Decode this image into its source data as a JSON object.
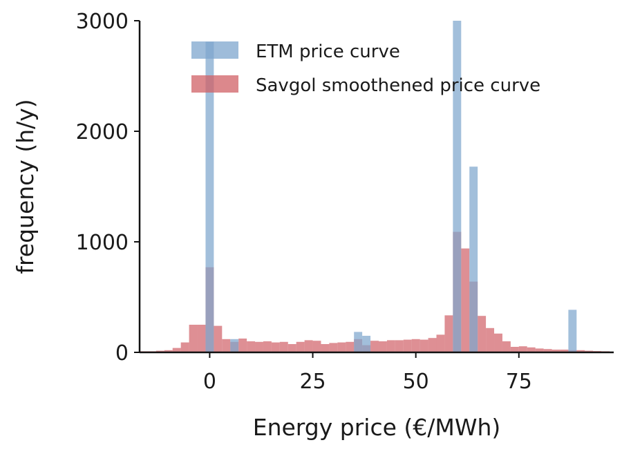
{
  "chart_data": {
    "type": "bar",
    "xlabel": "Energy price (€/MWh)",
    "ylabel": "frequency (h/y)",
    "xlim": [
      -17,
      98
    ],
    "ylim": [
      0,
      3000
    ],
    "xticks": [
      0,
      25,
      50,
      75
    ],
    "yticks": [
      0,
      1000,
      2000,
      3000
    ],
    "grid": false,
    "legend_position": "top-right",
    "bin_width": 2,
    "series": [
      {
        "name": "ETM price curve",
        "color": "#7ea6cd",
        "bins": [
          {
            "x": -1,
            "y": 2810
          },
          {
            "x": 5,
            "y": 120
          },
          {
            "x": 35,
            "y": 185
          },
          {
            "x": 37,
            "y": 150
          },
          {
            "x": 59,
            "y": 3000
          },
          {
            "x": 63,
            "y": 1680
          },
          {
            "x": 87,
            "y": 385
          }
        ]
      },
      {
        "name": "Savgol smoothened price curve",
        "color": "#d06066",
        "bins": [
          {
            "x": -17,
            "y": 10
          },
          {
            "x": -15,
            "y": 10
          },
          {
            "x": -13,
            "y": 15
          },
          {
            "x": -11,
            "y": 20
          },
          {
            "x": -9,
            "y": 40
          },
          {
            "x": -7,
            "y": 90
          },
          {
            "x": -5,
            "y": 250
          },
          {
            "x": -3,
            "y": 250
          },
          {
            "x": -1,
            "y": 770
          },
          {
            "x": 1,
            "y": 240
          },
          {
            "x": 3,
            "y": 120
          },
          {
            "x": 5,
            "y": 95
          },
          {
            "x": 7,
            "y": 125
          },
          {
            "x": 9,
            "y": 100
          },
          {
            "x": 11,
            "y": 95
          },
          {
            "x": 13,
            "y": 100
          },
          {
            "x": 15,
            "y": 90
          },
          {
            "x": 17,
            "y": 95
          },
          {
            "x": 19,
            "y": 75
          },
          {
            "x": 21,
            "y": 95
          },
          {
            "x": 23,
            "y": 110
          },
          {
            "x": 25,
            "y": 105
          },
          {
            "x": 27,
            "y": 75
          },
          {
            "x": 29,
            "y": 85
          },
          {
            "x": 31,
            "y": 90
          },
          {
            "x": 33,
            "y": 95
          },
          {
            "x": 35,
            "y": 120
          },
          {
            "x": 37,
            "y": 65
          },
          {
            "x": 39,
            "y": 105
          },
          {
            "x": 41,
            "y": 100
          },
          {
            "x": 43,
            "y": 110
          },
          {
            "x": 45,
            "y": 110
          },
          {
            "x": 47,
            "y": 115
          },
          {
            "x": 49,
            "y": 120
          },
          {
            "x": 51,
            "y": 115
          },
          {
            "x": 53,
            "y": 130
          },
          {
            "x": 55,
            "y": 160
          },
          {
            "x": 57,
            "y": 335
          },
          {
            "x": 59,
            "y": 1090
          },
          {
            "x": 61,
            "y": 940
          },
          {
            "x": 63,
            "y": 640
          },
          {
            "x": 65,
            "y": 330
          },
          {
            "x": 67,
            "y": 220
          },
          {
            "x": 69,
            "y": 170
          },
          {
            "x": 71,
            "y": 100
          },
          {
            "x": 73,
            "y": 50
          },
          {
            "x": 75,
            "y": 55
          },
          {
            "x": 77,
            "y": 45
          },
          {
            "x": 79,
            "y": 35
          },
          {
            "x": 81,
            "y": 30
          },
          {
            "x": 83,
            "y": 25
          },
          {
            "x": 85,
            "y": 25
          },
          {
            "x": 87,
            "y": 20
          },
          {
            "x": 89,
            "y": 20
          },
          {
            "x": 91,
            "y": 15
          },
          {
            "x": 93,
            "y": 12
          },
          {
            "x": 95,
            "y": 10
          }
        ]
      }
    ]
  }
}
